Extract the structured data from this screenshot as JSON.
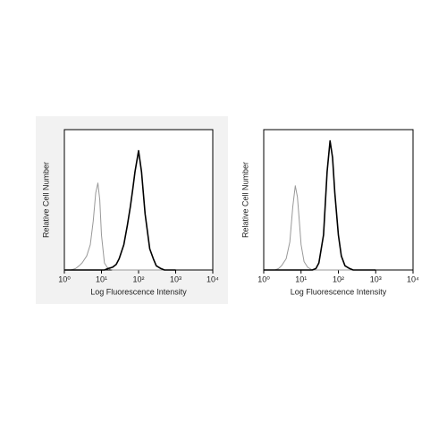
{
  "chart_data": [
    {
      "type": "line",
      "x_label": "Log Fluorescence Intensity",
      "y_label": "Relative Cell Number",
      "log_x": true,
      "xlim": [
        1,
        10000
      ],
      "ylim": [
        0,
        100
      ],
      "xticks": [
        {
          "value": 1,
          "label": "10⁰"
        },
        {
          "value": 10,
          "label": "10¹"
        },
        {
          "value": 100,
          "label": "10²"
        },
        {
          "value": 1000,
          "label": "10³"
        },
        {
          "value": 10000,
          "label": "10⁴"
        }
      ],
      "x": [
        1,
        1.5,
        2,
        2.5,
        3,
        4,
        5,
        6,
        7,
        8,
        9,
        10,
        12,
        15,
        20,
        25,
        30,
        40,
        50,
        60,
        70,
        80,
        100,
        120,
        150,
        200,
        250,
        300,
        400,
        500,
        1000
      ],
      "series": [
        {
          "color": "#999999",
          "values": [
            0,
            0,
            1,
            3,
            5,
            10,
            18,
            35,
            55,
            62,
            50,
            25,
            5,
            1,
            0,
            0,
            0,
            0,
            0,
            0,
            0,
            0,
            0,
            0,
            0,
            0,
            0,
            0,
            0,
            0,
            0
          ]
        },
        {
          "color": "#000000",
          "values": [
            0,
            0,
            0,
            0,
            0,
            0,
            0,
            0,
            0,
            0,
            0,
            0,
            0,
            1,
            2,
            4,
            8,
            18,
            32,
            45,
            58,
            70,
            85,
            70,
            40,
            15,
            8,
            3,
            1,
            0,
            0
          ]
        }
      ]
    },
    {
      "type": "line",
      "x_label": "Log Fluorescence Intensity",
      "y_label": "Relative Cell Number",
      "log_x": true,
      "xlim": [
        1,
        10000
      ],
      "ylim": [
        0,
        100
      ],
      "xticks": [
        {
          "value": 1,
          "label": "10⁰"
        },
        {
          "value": 10,
          "label": "10¹"
        },
        {
          "value": 100,
          "label": "10²"
        },
        {
          "value": 1000,
          "label": "10³"
        },
        {
          "value": 10000,
          "label": "10⁴"
        }
      ],
      "x": [
        1,
        1.5,
        2,
        2.5,
        3,
        4,
        5,
        6,
        7,
        8,
        9,
        10,
        12,
        15,
        20,
        25,
        30,
        40,
        50,
        60,
        70,
        80,
        100,
        120,
        150,
        200,
        250,
        300,
        400,
        500,
        1000
      ],
      "series": [
        {
          "color": "#999999",
          "values": [
            0,
            0,
            0,
            1,
            3,
            8,
            20,
            45,
            60,
            52,
            35,
            18,
            6,
            2,
            0,
            0,
            0,
            0,
            0,
            0,
            0,
            0,
            0,
            0,
            0,
            0,
            0,
            0,
            0,
            0,
            0
          ]
        },
        {
          "color": "#000000",
          "values": [
            0,
            0,
            0,
            0,
            0,
            0,
            0,
            0,
            0,
            0,
            0,
            0,
            0,
            0,
            0,
            1,
            5,
            25,
            70,
            92,
            80,
            55,
            25,
            10,
            3,
            1,
            0,
            0,
            0,
            0,
            0
          ]
        }
      ]
    }
  ]
}
